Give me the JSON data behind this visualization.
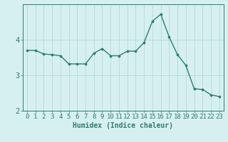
{
  "x": [
    0,
    1,
    2,
    3,
    4,
    5,
    6,
    7,
    8,
    9,
    10,
    11,
    12,
    13,
    14,
    15,
    16,
    17,
    18,
    19,
    20,
    21,
    22,
    23
  ],
  "y": [
    3.7,
    3.7,
    3.6,
    3.58,
    3.55,
    3.32,
    3.32,
    3.32,
    3.62,
    3.75,
    3.55,
    3.55,
    3.68,
    3.68,
    3.92,
    4.52,
    4.72,
    4.08,
    3.58,
    3.28,
    2.62,
    2.6,
    2.45,
    2.4
  ],
  "line_color": "#2e7d6e",
  "marker": "o",
  "markersize": 2.2,
  "linewidth": 1.0,
  "xlabel": "Humidex (Indice chaleur)",
  "xlim": [
    -0.5,
    23.5
  ],
  "ylim": [
    2.0,
    5.0
  ],
  "yticks": [
    2,
    3,
    4
  ],
  "xticks": [
    0,
    1,
    2,
    3,
    4,
    5,
    6,
    7,
    8,
    9,
    10,
    11,
    12,
    13,
    14,
    15,
    16,
    17,
    18,
    19,
    20,
    21,
    22,
    23
  ],
  "bg_color": "#d6f0f0",
  "grid_color": "#b8d8d8",
  "tick_color": "#2e7d6e",
  "label_color": "#2e7d6e",
  "xlabel_fontsize": 7,
  "tick_fontsize": 6.5,
  "ytick_fontsize": 7.5
}
